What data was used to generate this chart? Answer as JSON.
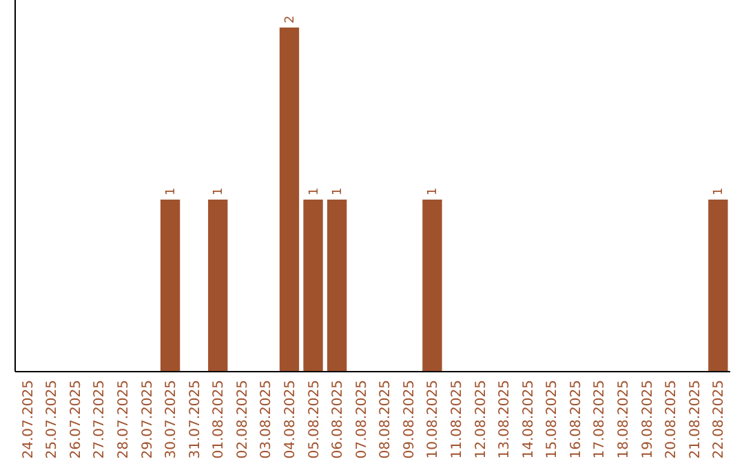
{
  "chart_data": {
    "type": "bar",
    "categories": [
      "24.07.2025",
      "25.07.2025",
      "26.07.2025",
      "27.07.2025",
      "28.07.2025",
      "29.07.2025",
      "30.07.2025",
      "31.07.2025",
      "01.08.2025",
      "02.08.2025",
      "03.08.2025",
      "04.08.2025",
      "05.08.2025",
      "06.08.2025",
      "07.08.2025",
      "08.08.2025",
      "09.08.2025",
      "10.08.2025",
      "11.08.2025",
      "12.08.2025",
      "13.08.2025",
      "14.08.2025",
      "15.08.2025",
      "16.08.2025",
      "17.08.2025",
      "18.08.2025",
      "19.08.2025",
      "20.08.2025",
      "21.08.2025",
      "22.08.2025"
    ],
    "values": [
      0,
      0,
      0,
      0,
      0,
      0,
      1,
      0,
      1,
      0,
      0,
      2,
      1,
      1,
      0,
      0,
      0,
      1,
      0,
      0,
      0,
      0,
      0,
      0,
      0,
      0,
      0,
      0,
      0,
      1
    ],
    "value_labels": [
      null,
      null,
      null,
      null,
      null,
      null,
      "1",
      null,
      "1",
      null,
      null,
      "2",
      "1",
      "1",
      null,
      null,
      null,
      "1",
      null,
      null,
      null,
      null,
      null,
      null,
      null,
      null,
      null,
      null,
      null,
      "1"
    ],
    "color": "#a0522d",
    "relative": false
  }
}
